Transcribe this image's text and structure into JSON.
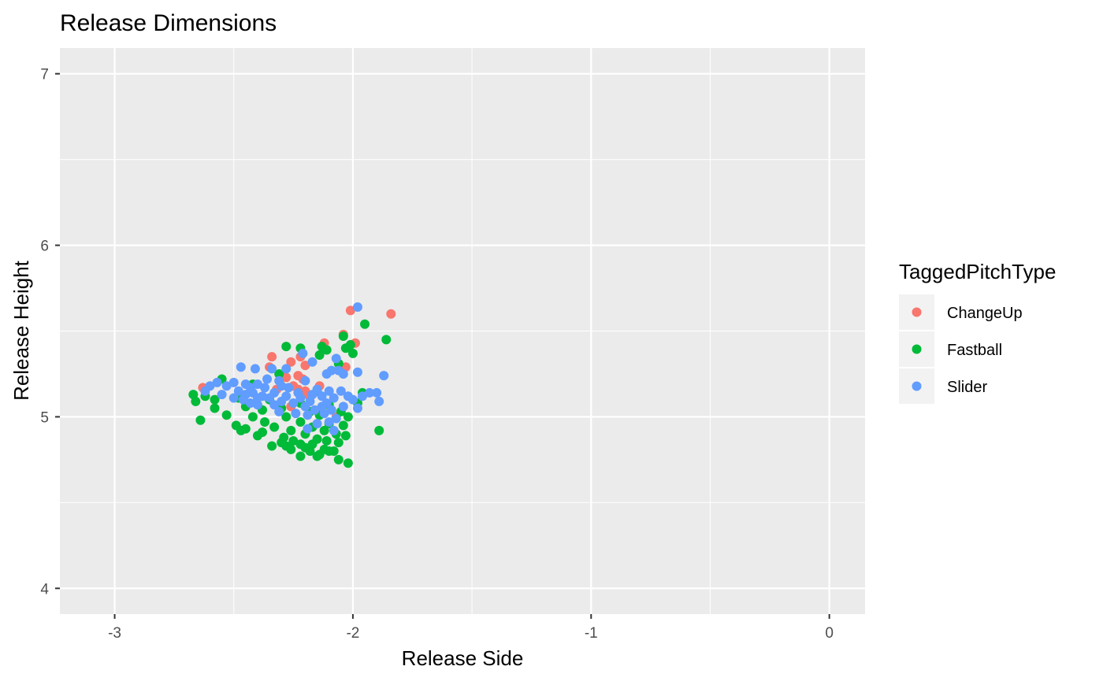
{
  "chart_data": {
    "type": "scatter",
    "title": "Release Dimensions",
    "xlabel": "Release Side",
    "ylabel": "Release Height",
    "xlim": [
      -3.23,
      0.15
    ],
    "ylim": [
      3.85,
      7.15
    ],
    "x_ticks": [
      -3,
      -2,
      -1,
      0
    ],
    "x_tick_labels": [
      "-3",
      "-2",
      "-1",
      "0"
    ],
    "x_minor": [
      -2.5,
      -1.5,
      -0.5
    ],
    "y_ticks": [
      4,
      5,
      6,
      7
    ],
    "y_tick_labels": [
      "4",
      "5",
      "6",
      "7"
    ],
    "y_minor": [
      4.5,
      5.5,
      6.5
    ],
    "grid": true,
    "legend": {
      "title": "TaggedPitchType",
      "position": "right"
    },
    "series": [
      {
        "name": "ChangeUp",
        "color": "#F8766D",
        "points": [
          [
            -2.01,
            5.62
          ],
          [
            -1.84,
            5.6
          ],
          [
            -2.04,
            5.48
          ],
          [
            -1.99,
            5.43
          ],
          [
            -2.12,
            5.43
          ],
          [
            -2.22,
            5.35
          ],
          [
            -2.34,
            5.35
          ],
          [
            -2.26,
            5.32
          ],
          [
            -2.2,
            5.3
          ],
          [
            -2.35,
            5.29
          ],
          [
            -2.03,
            5.29
          ],
          [
            -2.23,
            5.24
          ],
          [
            -2.29,
            5.24
          ],
          [
            -2.21,
            5.22
          ],
          [
            -2.28,
            5.23
          ],
          [
            -2.25,
            5.18
          ],
          [
            -2.14,
            5.18
          ],
          [
            -2.23,
            5.16
          ],
          [
            -2.2,
            5.15
          ],
          [
            -2.32,
            5.16
          ],
          [
            -2.63,
            5.17
          ],
          [
            -2.19,
            5.13
          ],
          [
            -2.26,
            5.06
          ],
          [
            -2.07,
            5.0
          ]
        ]
      },
      {
        "name": "Fastball",
        "color": "#00BA38",
        "points": [
          [
            -1.95,
            5.54
          ],
          [
            -1.86,
            5.45
          ],
          [
            -2.04,
            5.47
          ],
          [
            -2.01,
            5.42
          ],
          [
            -2.22,
            5.4
          ],
          [
            -2.28,
            5.41
          ],
          [
            -2.13,
            5.41
          ],
          [
            -2.03,
            5.4
          ],
          [
            -2.11,
            5.39
          ],
          [
            -2.0,
            5.37
          ],
          [
            -2.14,
            5.36
          ],
          [
            -2.06,
            5.31
          ],
          [
            -2.31,
            5.25
          ],
          [
            -2.55,
            5.22
          ],
          [
            -2.42,
            5.19
          ],
          [
            -2.15,
            5.15
          ],
          [
            -1.96,
            5.14
          ],
          [
            -2.67,
            5.13
          ],
          [
            -2.62,
            5.12
          ],
          [
            -2.48,
            5.11
          ],
          [
            -2.58,
            5.1
          ],
          [
            -2.66,
            5.09
          ],
          [
            -2.35,
            5.1
          ],
          [
            -2.22,
            5.08
          ],
          [
            -2.1,
            5.07
          ],
          [
            -1.98,
            5.08
          ],
          [
            -2.45,
            5.06
          ],
          [
            -2.58,
            5.05
          ],
          [
            -2.38,
            5.04
          ],
          [
            -2.3,
            5.05
          ],
          [
            -2.18,
            5.03
          ],
          [
            -2.05,
            5.03
          ],
          [
            -2.53,
            5.01
          ],
          [
            -2.42,
            5.0
          ],
          [
            -2.28,
            5.0
          ],
          [
            -2.14,
            5.01
          ],
          [
            -2.02,
            5.0
          ],
          [
            -2.64,
            4.98
          ],
          [
            -2.37,
            4.97
          ],
          [
            -2.22,
            4.97
          ],
          [
            -2.1,
            4.96
          ],
          [
            -2.04,
            4.95
          ],
          [
            -2.49,
            4.95
          ],
          [
            -2.33,
            4.94
          ],
          [
            -2.17,
            4.94
          ],
          [
            -2.45,
            4.93
          ],
          [
            -2.26,
            4.92
          ],
          [
            -2.12,
            4.92
          ],
          [
            -1.89,
            4.92
          ],
          [
            -2.47,
            4.92
          ],
          [
            -2.38,
            4.91
          ],
          [
            -2.2,
            4.9
          ],
          [
            -2.07,
            4.9
          ],
          [
            -2.03,
            4.89
          ],
          [
            -2.4,
            4.89
          ],
          [
            -2.29,
            4.88
          ],
          [
            -2.15,
            4.87
          ],
          [
            -2.25,
            4.86
          ],
          [
            -2.11,
            4.86
          ],
          [
            -2.06,
            4.85
          ],
          [
            -2.3,
            4.85
          ],
          [
            -2.22,
            4.84
          ],
          [
            -2.17,
            4.84
          ],
          [
            -2.34,
            4.83
          ],
          [
            -2.28,
            4.83
          ],
          [
            -2.2,
            4.82
          ],
          [
            -2.12,
            4.81
          ],
          [
            -2.26,
            4.81
          ],
          [
            -2.18,
            4.8
          ],
          [
            -2.1,
            4.8
          ],
          [
            -2.08,
            4.8
          ],
          [
            -2.14,
            4.78
          ],
          [
            -2.22,
            4.77
          ],
          [
            -2.15,
            4.77
          ],
          [
            -2.06,
            4.75
          ],
          [
            -2.02,
            4.73
          ]
        ]
      },
      {
        "name": "Slider",
        "color": "#619CFF",
        "points": [
          [
            -1.98,
            5.64
          ],
          [
            -2.21,
            5.37
          ],
          [
            -2.07,
            5.34
          ],
          [
            -2.17,
            5.32
          ],
          [
            -2.47,
            5.29
          ],
          [
            -2.41,
            5.28
          ],
          [
            -2.28,
            5.28
          ],
          [
            -2.34,
            5.28
          ],
          [
            -2.09,
            5.27
          ],
          [
            -2.06,
            5.27
          ],
          [
            -2.11,
            5.25
          ],
          [
            -2.04,
            5.25
          ],
          [
            -1.98,
            5.26
          ],
          [
            -1.87,
            5.24
          ],
          [
            -2.36,
            5.22
          ],
          [
            -2.31,
            5.21
          ],
          [
            -2.2,
            5.21
          ],
          [
            -2.57,
            5.2
          ],
          [
            -2.5,
            5.2
          ],
          [
            -2.45,
            5.19
          ],
          [
            -2.4,
            5.19
          ],
          [
            -2.3,
            5.18
          ],
          [
            -2.6,
            5.18
          ],
          [
            -2.53,
            5.18
          ],
          [
            -2.43,
            5.17
          ],
          [
            -2.37,
            5.17
          ],
          [
            -2.27,
            5.17
          ],
          [
            -2.15,
            5.16
          ],
          [
            -2.1,
            5.15
          ],
          [
            -2.05,
            5.15
          ],
          [
            -2.62,
            5.15
          ],
          [
            -2.48,
            5.15
          ],
          [
            -2.42,
            5.14
          ],
          [
            -2.33,
            5.14
          ],
          [
            -2.23,
            5.14
          ],
          [
            -2.17,
            5.13
          ],
          [
            -1.93,
            5.14
          ],
          [
            -1.9,
            5.14
          ],
          [
            -2.55,
            5.13
          ],
          [
            -2.45,
            5.13
          ],
          [
            -2.38,
            5.12
          ],
          [
            -2.28,
            5.12
          ],
          [
            -2.13,
            5.12
          ],
          [
            -2.02,
            5.12
          ],
          [
            -1.96,
            5.12
          ],
          [
            -2.5,
            5.11
          ],
          [
            -2.4,
            5.11
          ],
          [
            -2.35,
            5.11
          ],
          [
            -2.22,
            5.11
          ],
          [
            -2.08,
            5.11
          ],
          [
            -2.0,
            5.1
          ],
          [
            -2.46,
            5.1
          ],
          [
            -2.3,
            5.09
          ],
          [
            -2.18,
            5.09
          ],
          [
            -1.89,
            5.09
          ],
          [
            -2.43,
            5.08
          ],
          [
            -2.25,
            5.08
          ],
          [
            -2.11,
            5.08
          ],
          [
            -2.4,
            5.07
          ],
          [
            -2.33,
            5.07
          ],
          [
            -2.2,
            5.06
          ],
          [
            -2.13,
            5.06
          ],
          [
            -2.04,
            5.06
          ],
          [
            -2.16,
            5.04
          ],
          [
            -2.09,
            5.04
          ],
          [
            -1.98,
            5.05
          ],
          [
            -2.31,
            5.03
          ],
          [
            -2.24,
            5.02
          ],
          [
            -2.12,
            5.02
          ],
          [
            -2.19,
            5.01
          ],
          [
            -2.07,
            4.99
          ],
          [
            -2.1,
            4.97
          ],
          [
            -2.15,
            4.96
          ],
          [
            -2.19,
            4.93
          ],
          [
            -2.08,
            4.92
          ]
        ]
      }
    ]
  }
}
